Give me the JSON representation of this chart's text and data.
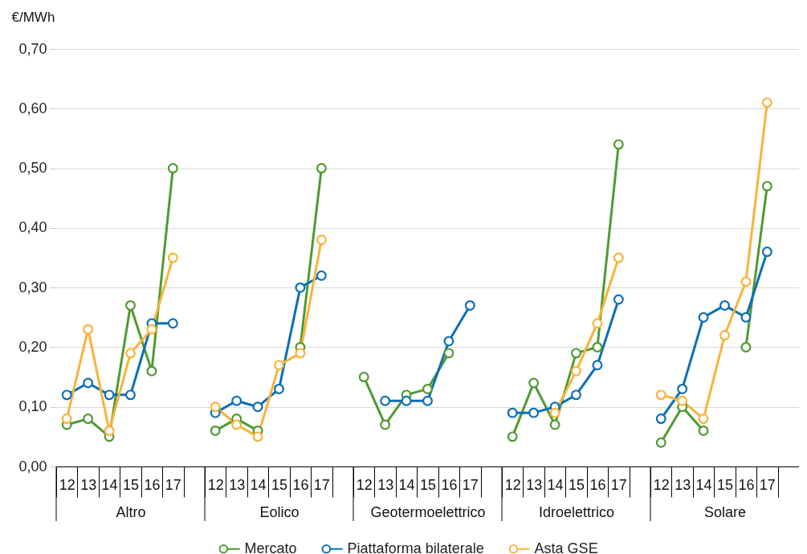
{
  "chart_data": [
    {
      "type": "line",
      "xlabel": "Altro",
      "ylabel": "€/MWh",
      "categories": [
        "12",
        "13",
        "14",
        "15",
        "16",
        "17"
      ],
      "series": [
        {
          "color": "#4f9a32",
          "values": [
            0.07,
            0.08,
            0.05,
            0.27,
            0.16,
            0.5
          ]
        },
        {
          "color": "#0c6fb5",
          "values": [
            0.12,
            0.14,
            0.12,
            0.12,
            0.24,
            0.24
          ]
        },
        {
          "color": "#f7b33b",
          "values": [
            0.08,
            0.23,
            0.06,
            0.19,
            0.23,
            0.35
          ]
        }
      ],
      "ylim": [
        0,
        0.7
      ],
      "yticks": [
        {
          "value": 0,
          "label": "0,00"
        },
        {
          "value": 0.1,
          "label": "0,10"
        },
        {
          "value": 0.2,
          "label": "0,20"
        },
        {
          "value": 0.3,
          "label": "0,30"
        },
        {
          "value": 0.4,
          "label": "0,40"
        },
        {
          "value": 0.5,
          "label": "0,50"
        },
        {
          "value": 0.6,
          "label": "0,60"
        },
        {
          "value": 0.7,
          "label": "0,70"
        }
      ],
      "grid": "y",
      "marker": "circle"
    },
    {
      "type": "line",
      "xlabel": "Eolico",
      "categories": [
        "12",
        "13",
        "14",
        "15",
        "16",
        "17"
      ],
      "series": [
        {
          "color": "#4f9a32",
          "values": [
            0.06,
            0.08,
            0.06,
            null,
            0.2,
            0.5
          ]
        },
        {
          "color": "#0c6fb5",
          "values": [
            0.09,
            0.11,
            0.1,
            0.13,
            0.3,
            0.32
          ]
        },
        {
          "color": "#f7b33b",
          "values": [
            0.1,
            0.07,
            0.05,
            0.17,
            0.19,
            0.38
          ]
        }
      ],
      "ylim": [
        0,
        0.7
      ],
      "yticks": [
        0,
        0.1,
        0.2,
        0.3,
        0.4,
        0.5,
        0.6,
        0.7
      ],
      "grid": "y",
      "marker": "circle",
      "tick_labels": "x"
    },
    {
      "type": "line",
      "xlabel": "Geotermoelettrico",
      "categories": [
        "12",
        "13",
        "14",
        "15",
        "16",
        "17"
      ],
      "series": [
        {
          "name": "Mercato",
          "color": "#4f9a32",
          "values": [
            0.15,
            0.07,
            0.12,
            0.13,
            0.19,
            null
          ]
        },
        {
          "name": "Piattaforma bilaterale",
          "color": "#0c6fb5",
          "values": [
            null,
            0.11,
            0.11,
            0.11,
            0.21,
            0.27
          ]
        },
        {
          "name": "Asta GSE",
          "color": "#f7b33b",
          "values": [
            null,
            null,
            null,
            null,
            null,
            null
          ]
        }
      ],
      "ylim": [
        0,
        0.7
      ],
      "yticks": [
        0,
        0.1,
        0.2,
        0.3,
        0.4,
        0.5,
        0.6,
        0.7
      ],
      "grid": "y",
      "marker": "circle",
      "tick_labels": "x",
      "legend": "bottom"
    },
    {
      "type": "line",
      "xlabel": "Idroelettrico",
      "categories": [
        "12",
        "13",
        "14",
        "15",
        "16",
        "17"
      ],
      "series": [
        {
          "color": "#4f9a32",
          "values": [
            0.05,
            0.14,
            0.07,
            0.19,
            0.2,
            0.54
          ]
        },
        {
          "color": "#0c6fb5",
          "values": [
            0.09,
            0.09,
            0.1,
            0.12,
            0.17,
            0.28
          ]
        },
        {
          "color": "#f7b33b",
          "values": [
            null,
            null,
            0.09,
            0.16,
            0.24,
            0.35
          ]
        }
      ],
      "ylim": [
        0,
        0.7
      ],
      "yticks": [
        0,
        0.1,
        0.2,
        0.3,
        0.4,
        0.5,
        0.6,
        0.7
      ],
      "grid": "y",
      "marker": "circle",
      "tick_labels": "x"
    },
    {
      "type": "line",
      "xlabel": "Solare",
      "categories": [
        "12",
        "13",
        "14",
        "15",
        "16",
        "17"
      ],
      "series": [
        {
          "color": "#4f9a32",
          "values": [
            0.04,
            0.1,
            0.06,
            null,
            0.2,
            0.47
          ]
        },
        {
          "color": "#0c6fb5",
          "values": [
            0.08,
            0.13,
            0.25,
            0.27,
            0.25,
            0.36
          ]
        },
        {
          "color": "#f7b33b",
          "values": [
            0.12,
            0.11,
            0.08,
            0.22,
            0.31,
            0.61
          ]
        }
      ],
      "ylim": [
        0,
        0.7
      ],
      "yticks": [
        0,
        0.1,
        0.2,
        0.3,
        0.4,
        0.5,
        0.6,
        0.7
      ],
      "grid": "y",
      "marker": "circle",
      "tick_labels": "x"
    }
  ]
}
